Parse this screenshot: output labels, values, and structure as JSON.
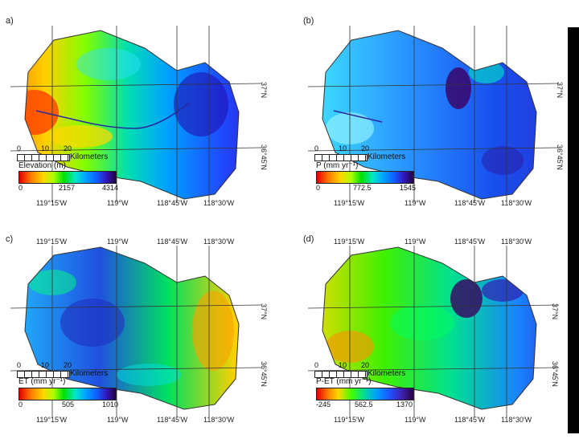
{
  "panels": {
    "a": {
      "letter": "a)",
      "legend_title": "Elevation (m)",
      "colorbar": [
        "0",
        "2157",
        "4314"
      ],
      "colormap": "rainbow-red-to-purple"
    },
    "b": {
      "letter": "(b)",
      "legend_title": "P (mm yr⁻¹)",
      "colorbar": [
        "0",
        "772.5",
        "1545"
      ],
      "colormap": "rainbow-red-to-purple"
    },
    "c": {
      "letter": "c)",
      "legend_title": "ET (mm yr⁻¹)",
      "colorbar": [
        "0",
        "505",
        "1010"
      ],
      "colormap": "rainbow-red-to-purple"
    },
    "d": {
      "letter": "(d)",
      "legend_title": "P-ET (mm yr⁻¹)",
      "colorbar": [
        "-245",
        "562.5",
        "1370"
      ],
      "colormap": "rainbow-red-to-purple"
    }
  },
  "graticule": {
    "longitudes": [
      "119°15'W",
      "119°W",
      "118°45'W",
      "118°30'W"
    ],
    "latitudes": [
      "37°N",
      "36°45'N"
    ]
  },
  "scale_bar": {
    "ticks": [
      "0",
      "10",
      "20"
    ],
    "unit": "Kilometers"
  },
  "colors": {
    "low": "#e00000",
    "mid": "#00e000",
    "high_blue": "#1060ff",
    "max": "#200040",
    "background": "#ffffff"
  }
}
